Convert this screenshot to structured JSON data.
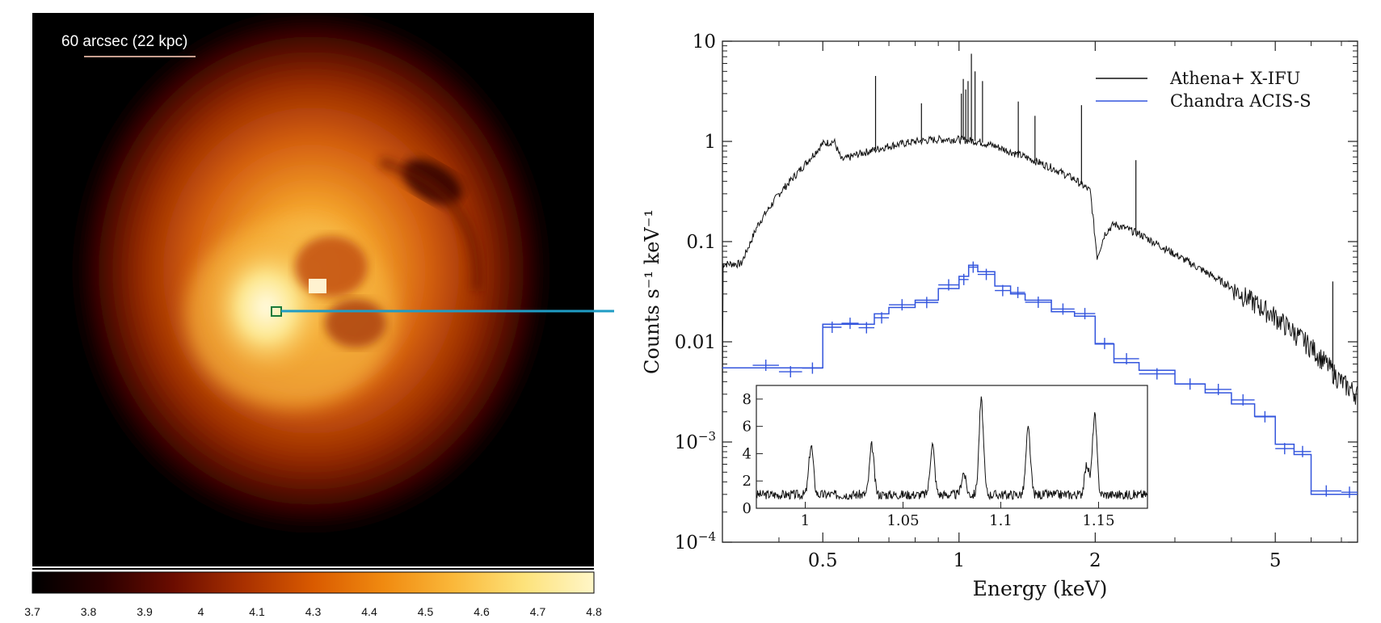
{
  "image_panel": {
    "scale_label": "60 arcsec  (22 kpc)",
    "colorbar": {
      "ticks": [
        "3.7",
        "3.8",
        "3.9",
        "4",
        "4.1",
        "4.3",
        "4.4",
        "4.5",
        "4.6",
        "4.7",
        "4.8"
      ],
      "colors": [
        "#000000",
        "#2a0000",
        "#6a0c00",
        "#a83000",
        "#d95a00",
        "#f08a10",
        "#fab83a",
        "#fde27a",
        "#fff6c8"
      ]
    },
    "colors": {
      "arrow": "#1f9cc4",
      "marker": "#1a7a3a"
    }
  },
  "chart_data": {
    "type": "line",
    "title": "",
    "xlabel": "Energy (keV)",
    "ylabel": "Counts s⁻¹ keV⁻¹",
    "xscale": "log",
    "yscale": "log",
    "xlim": [
      0.3,
      7.6
    ],
    "ylim": [
      0.0001,
      10
    ],
    "x_ticks": [
      {
        "value": 0.5,
        "label": "0.5"
      },
      {
        "value": 1,
        "label": "1"
      },
      {
        "value": 2,
        "label": "2"
      },
      {
        "value": 5,
        "label": "5"
      }
    ],
    "y_ticks": [
      {
        "value": 10,
        "label": "10"
      },
      {
        "value": 1,
        "label": "1"
      },
      {
        "value": 0.1,
        "label": "0.1"
      },
      {
        "value": 0.01,
        "label": "0.01"
      },
      {
        "value": 0.001,
        "base": "10",
        "exp": "−3"
      },
      {
        "value": 0.0001,
        "base": "10",
        "exp": "−4"
      }
    ],
    "legend_position": "top-right",
    "series": [
      {
        "name": "Athena+ X-IFU",
        "color": "#111111",
        "x": [
          0.3,
          0.33,
          0.36,
          0.4,
          0.45,
          0.5,
          0.53,
          0.55,
          0.6,
          0.7,
          0.8,
          0.9,
          1.0,
          1.1,
          1.2,
          1.4,
          1.6,
          1.8,
          1.95,
          2.02,
          2.1,
          2.2,
          2.5,
          3.0,
          3.5,
          4.0,
          5.0,
          6.0,
          6.5,
          7.0,
          7.6
        ],
        "y": [
          0.06,
          0.06,
          0.15,
          0.3,
          0.55,
          0.95,
          1.0,
          0.65,
          0.75,
          0.9,
          1.0,
          1.05,
          1.05,
          1.0,
          0.9,
          0.7,
          0.55,
          0.42,
          0.32,
          0.07,
          0.12,
          0.15,
          0.12,
          0.075,
          0.05,
          0.035,
          0.018,
          0.009,
          0.006,
          0.004,
          0.003
        ],
        "lines": [
          {
            "x": 0.654,
            "y": 4.5
          },
          {
            "x": 0.826,
            "y": 2.4
          },
          {
            "x": 1.012,
            "y": 3.0
          },
          {
            "x": 1.022,
            "y": 4.2
          },
          {
            "x": 1.035,
            "y": 3.3
          },
          {
            "x": 1.047,
            "y": 4.0
          },
          {
            "x": 1.065,
            "y": 7.5
          },
          {
            "x": 1.085,
            "y": 5.0
          },
          {
            "x": 1.127,
            "y": 4.0
          },
          {
            "x": 1.352,
            "y": 2.5
          },
          {
            "x": 1.472,
            "y": 1.8
          },
          {
            "x": 1.865,
            "y": 2.3
          },
          {
            "x": 2.46,
            "y": 0.65
          },
          {
            "x": 6.7,
            "y": 0.04
          }
        ]
      },
      {
        "name": "Chandra ACIS-S",
        "color": "#3355dd",
        "x": [
          0.3,
          0.35,
          0.4,
          0.45,
          0.5,
          0.55,
          0.6,
          0.65,
          0.7,
          0.8,
          0.9,
          1.0,
          1.05,
          1.1,
          1.2,
          1.3,
          1.4,
          1.6,
          1.8,
          2.0,
          2.2,
          2.5,
          3.0,
          3.5,
          4.0,
          4.5,
          5.0,
          5.5,
          6.0,
          7.0,
          7.6
        ],
        "y": [
          0.0055,
          0.0055,
          0.0055,
          0.0055,
          0.015,
          0.015,
          0.015,
          0.019,
          0.022,
          0.026,
          0.034,
          0.045,
          0.058,
          0.05,
          0.036,
          0.03,
          0.026,
          0.02,
          0.018,
          0.0095,
          0.0062,
          0.0052,
          0.0038,
          0.0031,
          0.0024,
          0.0018,
          0.00095,
          0.00075,
          0.0003,
          0.0003,
          0.0003
        ]
      }
    ],
    "inset": {
      "xlim": [
        0.975,
        1.175
      ],
      "ylim": [
        0,
        9
      ],
      "x_ticks": [
        "1",
        "1.05",
        "1.1",
        "1.15"
      ],
      "x_tick_values": [
        1.0,
        1.05,
        1.1,
        1.15
      ],
      "y_ticks": [
        "0",
        "2",
        "4",
        "6",
        "8"
      ],
      "y_tick_values": [
        0,
        2,
        4,
        6,
        8
      ],
      "baseline": 1.0,
      "peaks": [
        {
          "x": 1.003,
          "height": 3.6
        },
        {
          "x": 1.034,
          "height": 3.6
        },
        {
          "x": 1.065,
          "height": 3.7
        },
        {
          "x": 1.081,
          "height": 1.6
        },
        {
          "x": 1.09,
          "height": 6.9
        },
        {
          "x": 1.114,
          "height": 4.8
        },
        {
          "x": 1.144,
          "height": 2.2
        },
        {
          "x": 1.148,
          "height": 5.8
        }
      ]
    }
  }
}
